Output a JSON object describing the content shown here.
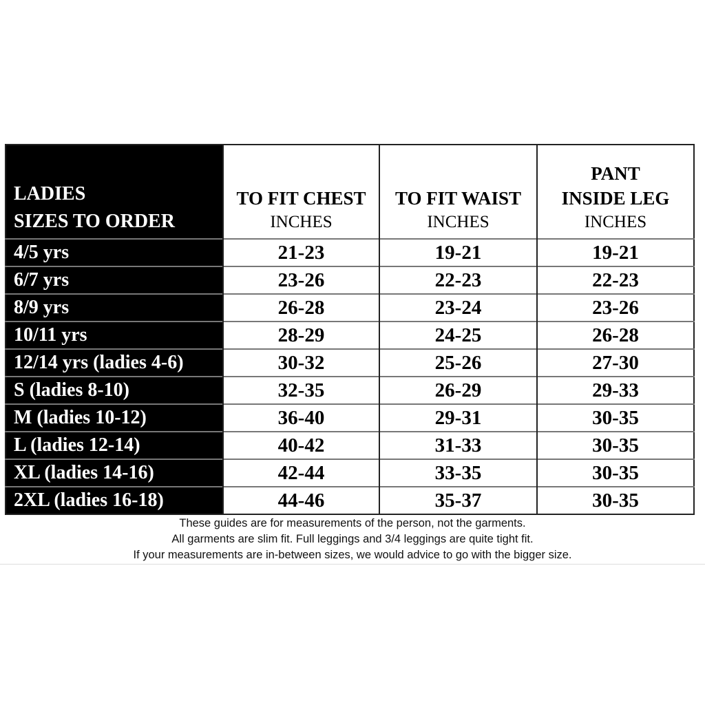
{
  "header": {
    "size_col": [
      "LADIES",
      "SIZES TO ORDER"
    ],
    "chest": {
      "title": "TO FIT CHEST",
      "unit": "INCHES"
    },
    "waist": {
      "title": "TO FIT WAIST",
      "unit": "INCHES"
    },
    "leg": {
      "title1": "PANT",
      "title2": "INSIDE LEG",
      "unit": "INCHES"
    }
  },
  "rows": [
    {
      "size": "4/5 yrs",
      "chest": "21-23",
      "waist": "19-21",
      "leg": "19-21"
    },
    {
      "size": "6/7 yrs",
      "chest": "23-26",
      "waist": "22-23",
      "leg": "22-23"
    },
    {
      "size": "8/9 yrs",
      "chest": "26-28",
      "waist": "23-24",
      "leg": "23-26"
    },
    {
      "size": "10/11 yrs",
      "chest": "28-29",
      "waist": "24-25",
      "leg": "26-28"
    },
    {
      "size": "12/14 yrs (ladies 4-6)",
      "chest": "30-32",
      "waist": "25-26",
      "leg": "27-30"
    },
    {
      "size": "S (ladies 8-10)",
      "chest": "32-35",
      "waist": "26-29",
      "leg": "29-33"
    },
    {
      "size": "M (ladies 10-12)",
      "chest": "36-40",
      "waist": "29-31",
      "leg": "30-35"
    },
    {
      "size": "L (ladies 12-14)",
      "chest": "40-42",
      "waist": "31-33",
      "leg": "30-35"
    },
    {
      "size": "XL (ladies 14-16)",
      "chest": "42-44",
      "waist": "33-35",
      "leg": "30-35"
    },
    {
      "size": "2XL (ladies 16-18)",
      "chest": "44-46",
      "waist": "35-37",
      "leg": "30-35"
    }
  ],
  "notes": [
    "These guides are for measurements of the person, not the garments.",
    "All garments are slim fit. Full leggings and 3/4 leggings are quite tight fit.",
    "If your measurements are in-between sizes, we would advice to go with the bigger size."
  ],
  "colors": {
    "size_column_bg": "#000000",
    "cell_bg": "#ffffff",
    "row_divider": "#777777"
  }
}
